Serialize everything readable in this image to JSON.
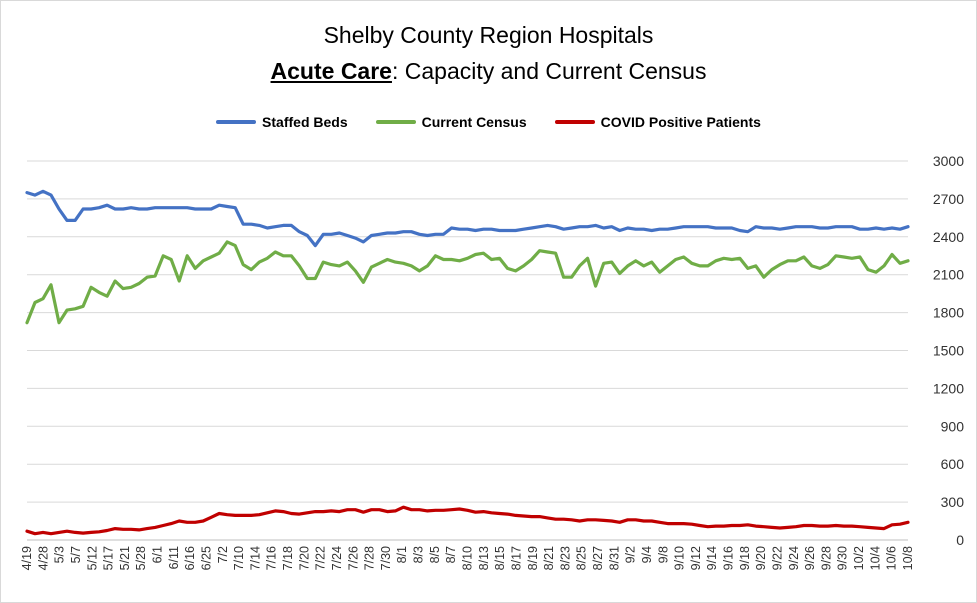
{
  "title": {
    "line1": "Shelby County Region Hospitals",
    "line2_bold": "Acute Care",
    "line2_rest": ": Capacity and Current Census"
  },
  "colors": {
    "staffed": "#4472C4",
    "census": "#70AD47",
    "covid": "#C00000",
    "grid": "#d9d9d9"
  },
  "chart_data": {
    "type": "line",
    "title": "Shelby County Region Hospitals Acute Care: Capacity and Current Census",
    "legend_position": "top",
    "grid": true,
    "ylim": [
      0,
      3000
    ],
    "y_ticks": [
      0,
      300,
      600,
      900,
      1200,
      1500,
      1800,
      2100,
      2400,
      2700,
      3000
    ],
    "x_tick_labels": [
      "4/19",
      "4/28",
      "5/3",
      "5/7",
      "5/12",
      "5/17",
      "5/21",
      "5/28",
      "6/1",
      "6/11",
      "6/16",
      "6/25",
      "7/2",
      "7/10",
      "7/14",
      "7/16",
      "7/18",
      "7/20",
      "7/22",
      "7/24",
      "7/26",
      "7/28",
      "7/30",
      "8/1",
      "8/3",
      "8/5",
      "8/7",
      "8/10",
      "8/13",
      "8/15",
      "8/17",
      "8/19",
      "8/21",
      "8/23",
      "8/25",
      "8/27",
      "8/31",
      "9/2",
      "9/4",
      "9/8",
      "9/10",
      "9/12",
      "9/14",
      "9/16",
      "9/18",
      "9/20",
      "9/22",
      "9/24",
      "9/26",
      "9/28",
      "9/30",
      "10/2",
      "10/4",
      "10/6",
      "10/8"
    ],
    "series": [
      {
        "name": "Staffed Beds",
        "values": [
          2750,
          2730,
          2760,
          2730,
          2620,
          2530,
          2530,
          2620,
          2620,
          2630,
          2650,
          2620,
          2620,
          2630,
          2620,
          2620,
          2630,
          2630,
          2630,
          2630,
          2630,
          2620,
          2620,
          2620,
          2650,
          2640,
          2630,
          2500,
          2500,
          2490,
          2470,
          2480,
          2490,
          2490,
          2440,
          2410,
          2330,
          2420,
          2420,
          2430,
          2410,
          2390,
          2360,
          2410,
          2420,
          2430,
          2430,
          2440,
          2440,
          2420,
          2410,
          2420,
          2420,
          2470,
          2460,
          2460,
          2450,
          2460,
          2460,
          2450,
          2450,
          2450,
          2460,
          2470,
          2480,
          2490,
          2480,
          2460,
          2470,
          2480,
          2480,
          2490,
          2470,
          2480,
          2450,
          2470,
          2460,
          2460,
          2450,
          2460,
          2460,
          2470,
          2480,
          2480,
          2480,
          2480,
          2470,
          2470,
          2470,
          2450,
          2440,
          2480,
          2470,
          2470,
          2460,
          2470,
          2480,
          2480,
          2480,
          2470,
          2470,
          2480,
          2480,
          2480,
          2460,
          2460,
          2470,
          2460,
          2470,
          2460,
          2480
        ],
        "color": "#4472C4"
      },
      {
        "name": "Current Census",
        "values": [
          1720,
          1880,
          1910,
          2020,
          1720,
          1820,
          1830,
          1850,
          2000,
          1960,
          1930,
          2050,
          1990,
          2000,
          2030,
          2080,
          2090,
          2250,
          2220,
          2050,
          2250,
          2150,
          2210,
          2240,
          2270,
          2360,
          2330,
          2180,
          2140,
          2200,
          2230,
          2280,
          2250,
          2250,
          2170,
          2070,
          2070,
          2200,
          2180,
          2170,
          2200,
          2130,
          2040,
          2160,
          2190,
          2220,
          2200,
          2190,
          2170,
          2130,
          2170,
          2250,
          2220,
          2220,
          2210,
          2230,
          2260,
          2270,
          2220,
          2230,
          2150,
          2130,
          2170,
          2220,
          2290,
          2280,
          2270,
          2080,
          2080,
          2170,
          2230,
          2010,
          2190,
          2200,
          2110,
          2170,
          2210,
          2170,
          2200,
          2120,
          2170,
          2220,
          2240,
          2190,
          2170,
          2170,
          2210,
          2230,
          2220,
          2230,
          2150,
          2170,
          2080,
          2140,
          2180,
          2210,
          2210,
          2240,
          2170,
          2150,
          2180,
          2250,
          2240,
          2230,
          2240,
          2140,
          2120,
          2170,
          2260,
          2190,
          2210
        ],
        "color": "#70AD47"
      },
      {
        "name": "COVID Positive Patients",
        "values": [
          70,
          50,
          60,
          50,
          60,
          70,
          60,
          55,
          60,
          65,
          75,
          90,
          85,
          85,
          80,
          90,
          100,
          115,
          130,
          150,
          140,
          140,
          150,
          180,
          210,
          200,
          195,
          195,
          195,
          200,
          215,
          230,
          225,
          210,
          205,
          215,
          225,
          225,
          230,
          225,
          240,
          240,
          220,
          240,
          240,
          225,
          230,
          260,
          240,
          240,
          230,
          235,
          235,
          240,
          245,
          235,
          220,
          225,
          215,
          210,
          205,
          195,
          190,
          185,
          185,
          175,
          165,
          165,
          160,
          150,
          160,
          160,
          155,
          150,
          140,
          160,
          160,
          150,
          150,
          140,
          130,
          130,
          130,
          125,
          115,
          105,
          110,
          110,
          115,
          115,
          120,
          110,
          105,
          100,
          95,
          100,
          105,
          115,
          115,
          110,
          110,
          115,
          110,
          110,
          105,
          100,
          95,
          90,
          120,
          125,
          140
        ],
        "color": "#C00000"
      }
    ]
  }
}
